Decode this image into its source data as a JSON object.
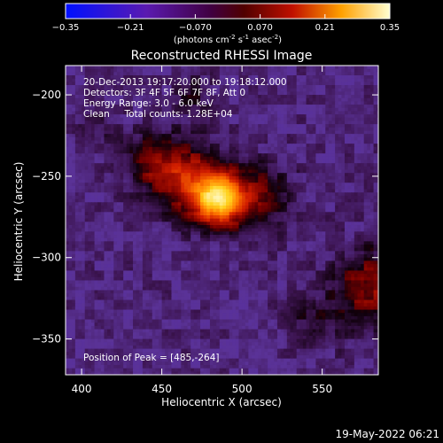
{
  "colorbar": {
    "ticks": [
      {
        "value": -0.35,
        "label": "-0.35"
      },
      {
        "value": -0.21,
        "label": "-0.21"
      },
      {
        "value": -0.07,
        "label": "-0.070"
      },
      {
        "value": 0.07,
        "label": "0.070"
      },
      {
        "value": 0.21,
        "label": "0.21"
      },
      {
        "value": 0.35,
        "label": "0.35"
      }
    ],
    "range": [
      -0.35,
      0.35
    ],
    "unit_label_main": "(photons cm",
    "unit_sup1": "-2",
    "unit_mid1": " s",
    "unit_sup2": "-1",
    "unit_mid2": " asec",
    "unit_sup3": "-2",
    "unit_end": ")"
  },
  "chart_data": {
    "type": "heatmap",
    "title": "Reconstructed RHESSI Image",
    "xlabel": "Heliocentric X (arcsec)",
    "ylabel": "Heliocentric Y (arcsec)",
    "xlim": [
      390,
      585
    ],
    "ylim": [
      -372,
      -182
    ],
    "xticks": [
      400,
      450,
      500,
      550
    ],
    "yticks": [
      -200,
      -250,
      -300,
      -350
    ],
    "value_range": [
      -0.35,
      0.35
    ],
    "sources": [
      {
        "x": 485,
        "y": -264,
        "sigma": 11,
        "peak": 0.35
      },
      {
        "x": 462,
        "y": -250,
        "sigma": 15,
        "peak": 0.17
      },
      {
        "x": 440,
        "y": -240,
        "sigma": 10,
        "peak": 0.08
      },
      {
        "x": 510,
        "y": -262,
        "sigma": 14,
        "peak": 0.1
      },
      {
        "x": 580,
        "y": -318,
        "sigma": 16,
        "peak": 0.13
      },
      {
        "x": 545,
        "y": -340,
        "sigma": 12,
        "peak": 0.05
      },
      {
        "x": 410,
        "y": -215,
        "sigma": 9,
        "peak": 0.04
      },
      {
        "x": 470,
        "y": -200,
        "sigma": 9,
        "peak": 0.05
      }
    ],
    "annotations": [
      "20-Dec-2013 19:17:20.000 to 19:18:12.000",
      "Detectors: 3F 4F 5F 6F 7F 8F, Att 0",
      "Energy Range: 3.0 - 6.0 keV",
      "Clean     Total counts: 1.28E+04"
    ],
    "peak_text": "Position of Peak = [485,-264]"
  },
  "timestamp": "19-May-2022 06:21"
}
